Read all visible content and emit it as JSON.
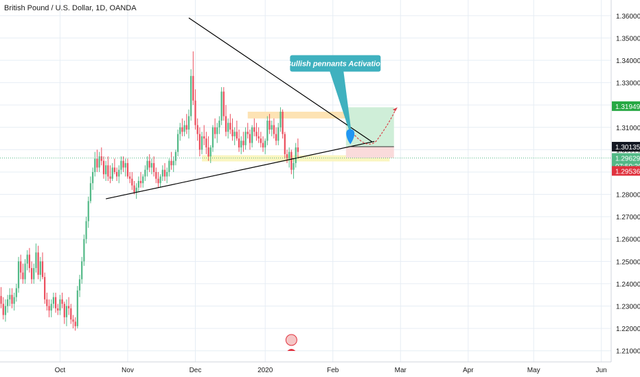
{
  "chart_data": {
    "type": "candlestick",
    "title": "British Pound / U.S. Dollar, 1D, OANDA",
    "y_axis": {
      "min": 1.205,
      "max": 1.367,
      "position": "right",
      "ticks": [
        "1.36000",
        "1.35000",
        "1.34000",
        "1.33000",
        "1.32000",
        "1.31000",
        "1.30000",
        "1.29000",
        "1.28000",
        "1.27000",
        "1.26000",
        "1.25000",
        "1.24000",
        "1.23000",
        "1.22000",
        "1.21000"
      ]
    },
    "x_axis": {
      "bars": 180,
      "tick_labels": [
        {
          "label": "Oct",
          "bar": 27
        },
        {
          "label": "Nov",
          "bar": 58
        },
        {
          "label": "Dec",
          "bar": 89
        },
        {
          "label": "2020",
          "bar": 121
        },
        {
          "label": "Feb",
          "bar": 152
        },
        {
          "label": "Mar",
          "bar": 183
        },
        {
          "label": "Apr",
          "bar": 214
        },
        {
          "label": "May",
          "bar": 244
        },
        {
          "label": "Jun",
          "bar": 275
        }
      ]
    },
    "grid": true,
    "colors": {
      "up": "#53b987",
      "down": "#eb4d5c",
      "wick_up": "#53b987",
      "wick_down": "#eb4d5c",
      "grid": "#e6edf4",
      "trendline": "#000000",
      "callout": "#3fb1bf",
      "zone_orange": "#fde3b4",
      "zone_yellow": "#fbf5c0",
      "target_green": "#cfeed8",
      "stop_red": "#fadbdb",
      "projection": "#d8434a"
    },
    "price_tags": [
      {
        "label": "1.31949",
        "price": 1.31949,
        "color": "#27a844"
      },
      {
        "label": "1.30135",
        "price": 1.30135,
        "color": "#131722"
      },
      {
        "label": "1.29629",
        "price": 1.29629,
        "color": "#53b987"
      },
      {
        "label": "07:50:30",
        "price": 1.2927,
        "color": "#53b987"
      },
      {
        "label": "1.29536",
        "price": 1.2905,
        "color": "#e0323e"
      }
    ],
    "candles": [
      [
        1.2345,
        1.2385,
        1.229,
        1.231
      ],
      [
        1.231,
        1.234,
        1.224,
        1.226
      ],
      [
        1.226,
        1.233,
        1.223,
        1.23
      ],
      [
        1.23,
        1.235,
        1.227,
        1.233
      ],
      [
        1.233,
        1.238,
        1.23,
        1.235
      ],
      [
        1.235,
        1.238,
        1.229,
        1.231
      ],
      [
        1.231,
        1.236,
        1.228,
        1.234
      ],
      [
        1.234,
        1.24,
        1.232,
        1.238
      ],
      [
        1.238,
        1.252,
        1.236,
        1.25
      ],
      [
        1.25,
        1.253,
        1.242,
        1.245
      ],
      [
        1.245,
        1.249,
        1.24,
        1.242
      ],
      [
        1.242,
        1.251,
        1.24,
        1.249
      ],
      [
        1.249,
        1.255,
        1.246,
        1.253
      ],
      [
        1.253,
        1.256,
        1.245,
        1.247
      ],
      [
        1.247,
        1.25,
        1.24,
        1.242
      ],
      [
        1.242,
        1.249,
        1.24,
        1.247
      ],
      [
        1.247,
        1.258,
        1.245,
        1.254
      ],
      [
        1.254,
        1.257,
        1.242,
        1.244
      ],
      [
        1.244,
        1.252,
        1.241,
        1.25
      ],
      [
        1.25,
        1.254,
        1.242,
        1.243
      ],
      [
        1.243,
        1.245,
        1.231,
        1.233
      ],
      [
        1.233,
        1.236,
        1.228,
        1.23
      ],
      [
        1.23,
        1.233,
        1.225,
        1.228
      ],
      [
        1.228,
        1.233,
        1.225,
        1.231
      ],
      [
        1.231,
        1.236,
        1.229,
        1.234
      ],
      [
        1.234,
        1.236,
        1.227,
        1.229
      ],
      [
        1.229,
        1.231,
        1.226,
        1.228
      ],
      [
        1.228,
        1.235,
        1.226,
        1.233
      ],
      [
        1.233,
        1.236,
        1.229,
        1.231
      ],
      [
        1.231,
        1.232,
        1.222,
        1.225
      ],
      [
        1.225,
        1.233,
        1.221,
        1.23
      ],
      [
        1.23,
        1.234,
        1.226,
        1.229
      ],
      [
        1.229,
        1.231,
        1.222,
        1.224
      ],
      [
        1.224,
        1.226,
        1.22,
        1.223
      ],
      [
        1.223,
        1.225,
        1.219,
        1.221
      ],
      [
        1.221,
        1.239,
        1.22,
        1.237
      ],
      [
        1.237,
        1.244,
        1.234,
        1.242
      ],
      [
        1.242,
        1.252,
        1.24,
        1.25
      ],
      [
        1.25,
        1.262,
        1.248,
        1.26
      ],
      [
        1.26,
        1.27,
        1.258,
        1.268
      ],
      [
        1.268,
        1.279,
        1.265,
        1.277
      ],
      [
        1.277,
        1.288,
        1.276,
        1.285
      ],
      [
        1.285,
        1.292,
        1.282,
        1.29
      ],
      [
        1.29,
        1.299,
        1.288,
        1.296
      ],
      [
        1.296,
        1.3,
        1.29,
        1.292
      ],
      [
        1.292,
        1.299,
        1.29,
        1.297
      ],
      [
        1.297,
        1.301,
        1.293,
        1.295
      ],
      [
        1.295,
        1.297,
        1.287,
        1.289
      ],
      [
        1.289,
        1.295,
        1.286,
        1.293
      ],
      [
        1.293,
        1.297,
        1.286,
        1.288
      ],
      [
        1.288,
        1.293,
        1.285,
        1.287
      ],
      [
        1.287,
        1.294,
        1.286,
        1.292
      ],
      [
        1.292,
        1.296,
        1.289,
        1.29
      ],
      [
        1.29,
        1.292,
        1.286,
        1.288
      ],
      [
        1.288,
        1.293,
        1.285,
        1.291
      ],
      [
        1.291,
        1.297,
        1.289,
        1.295
      ],
      [
        1.295,
        1.297,
        1.29,
        1.292
      ],
      [
        1.292,
        1.296,
        1.288,
        1.294
      ],
      [
        1.294,
        1.296,
        1.287,
        1.288
      ],
      [
        1.288,
        1.29,
        1.285,
        1.287
      ],
      [
        1.287,
        1.29,
        1.282,
        1.284
      ],
      [
        1.284,
        1.286,
        1.28,
        1.281
      ],
      [
        1.281,
        1.285,
        1.278,
        1.283
      ],
      [
        1.283,
        1.288,
        1.281,
        1.286
      ],
      [
        1.286,
        1.29,
        1.283,
        1.285
      ],
      [
        1.285,
        1.289,
        1.283,
        1.288
      ],
      [
        1.288,
        1.293,
        1.286,
        1.291
      ],
      [
        1.291,
        1.297,
        1.288,
        1.295
      ],
      [
        1.295,
        1.298,
        1.29,
        1.292
      ],
      [
        1.292,
        1.296,
        1.289,
        1.294
      ],
      [
        1.294,
        1.297,
        1.288,
        1.29
      ],
      [
        1.29,
        1.292,
        1.285,
        1.287
      ],
      [
        1.287,
        1.29,
        1.283,
        1.285
      ],
      [
        1.285,
        1.289,
        1.283,
        1.288
      ],
      [
        1.288,
        1.293,
        1.286,
        1.291
      ],
      [
        1.291,
        1.294,
        1.286,
        1.288
      ],
      [
        1.288,
        1.292,
        1.285,
        1.29
      ],
      [
        1.29,
        1.296,
        1.288,
        1.295
      ],
      [
        1.295,
        1.299,
        1.291,
        1.293
      ],
      [
        1.293,
        1.297,
        1.29,
        1.295
      ],
      [
        1.295,
        1.3,
        1.293,
        1.299
      ],
      [
        1.299,
        1.309,
        1.297,
        1.307
      ],
      [
        1.307,
        1.312,
        1.304,
        1.31
      ],
      [
        1.31,
        1.314,
        1.306,
        1.308
      ],
      [
        1.308,
        1.313,
        1.306,
        1.311
      ],
      [
        1.311,
        1.316,
        1.307,
        1.309
      ],
      [
        1.309,
        1.318,
        1.305,
        1.315
      ],
      [
        1.315,
        1.336,
        1.313,
        1.333
      ],
      [
        1.333,
        1.344,
        1.32,
        1.322
      ],
      [
        1.322,
        1.327,
        1.309,
        1.311
      ],
      [
        1.311,
        1.314,
        1.304,
        1.307
      ],
      [
        1.307,
        1.31,
        1.297,
        1.3
      ],
      [
        1.3,
        1.308,
        1.298,
        1.306
      ],
      [
        1.306,
        1.311,
        1.302,
        1.305
      ],
      [
        1.305,
        1.308,
        1.298,
        1.301
      ],
      [
        1.301,
        1.306,
        1.295,
        1.297
      ],
      [
        1.297,
        1.302,
        1.294,
        1.301
      ],
      [
        1.301,
        1.311,
        1.299,
        1.31
      ],
      [
        1.31,
        1.314,
        1.305,
        1.307
      ],
      [
        1.307,
        1.312,
        1.303,
        1.31
      ],
      [
        1.31,
        1.315,
        1.307,
        1.313
      ],
      [
        1.313,
        1.328,
        1.311,
        1.326
      ],
      [
        1.326,
        1.328,
        1.313,
        1.315
      ],
      [
        1.315,
        1.32,
        1.306,
        1.308
      ],
      [
        1.308,
        1.314,
        1.305,
        1.312
      ],
      [
        1.312,
        1.316,
        1.307,
        1.309
      ],
      [
        1.309,
        1.314,
        1.304,
        1.306
      ],
      [
        1.306,
        1.31,
        1.302,
        1.308
      ],
      [
        1.308,
        1.313,
        1.304,
        1.305
      ],
      [
        1.305,
        1.309,
        1.299,
        1.301
      ],
      [
        1.301,
        1.306,
        1.298,
        1.304
      ],
      [
        1.304,
        1.308,
        1.299,
        1.302
      ],
      [
        1.302,
        1.31,
        1.3,
        1.308
      ],
      [
        1.308,
        1.312,
        1.305,
        1.307
      ],
      [
        1.307,
        1.309,
        1.3,
        1.303
      ],
      [
        1.303,
        1.311,
        1.301,
        1.31
      ],
      [
        1.31,
        1.314,
        1.306,
        1.308
      ],
      [
        1.308,
        1.312,
        1.304,
        1.306
      ],
      [
        1.306,
        1.31,
        1.303,
        1.305
      ],
      [
        1.305,
        1.308,
        1.301,
        1.303
      ],
      [
        1.303,
        1.306,
        1.299,
        1.301
      ],
      [
        1.301,
        1.305,
        1.298,
        1.304
      ],
      [
        1.304,
        1.315,
        1.302,
        1.313
      ],
      [
        1.313,
        1.316,
        1.307,
        1.309
      ],
      [
        1.309,
        1.313,
        1.306,
        1.311
      ],
      [
        1.311,
        1.314,
        1.305,
        1.307
      ],
      [
        1.307,
        1.31,
        1.302,
        1.304
      ],
      [
        1.304,
        1.312,
        1.302,
        1.31
      ],
      [
        1.31,
        1.319,
        1.308,
        1.317
      ],
      [
        1.317,
        1.318,
        1.305,
        1.307
      ],
      [
        1.307,
        1.308,
        1.296,
        1.298
      ],
      [
        1.298,
        1.3,
        1.294,
        1.296
      ],
      [
        1.296,
        1.301,
        1.292,
        1.299
      ],
      [
        1.299,
        1.3,
        1.289,
        1.291
      ],
      [
        1.291,
        1.296,
        1.287,
        1.294
      ],
      [
        1.294,
        1.303,
        1.292,
        1.301
      ],
      [
        1.301,
        1.305,
        1.296,
        1.299
      ]
    ]
  },
  "footer": {
    "logo": "tradingview-logo"
  }
}
